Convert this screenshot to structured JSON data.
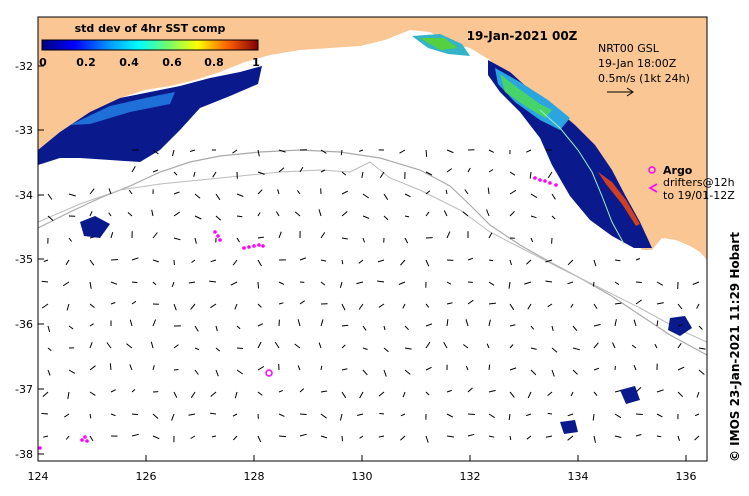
{
  "title": "19-Jan-2021 00Z",
  "colorbar": {
    "label": "std dev of 4hr SST comp",
    "ticks": [
      "0",
      "0.2",
      "0.4",
      "0.6",
      "0.8",
      "1"
    ]
  },
  "info": {
    "line1": "NRT00 GSL",
    "line2": "19-Jan 18:00Z",
    "line3": "0.5m/s (1kt 24h)"
  },
  "argo": {
    "label": "Argo",
    "line2": "drifters@12h",
    "line3": "to 19/01-12Z"
  },
  "side_label": "© IMOS 23-Jan-2021 11:29 Hobart",
  "axes": {
    "x_ticks": [
      "124",
      "126",
      "128",
      "130",
      "132",
      "134",
      "136"
    ],
    "y_ticks": [
      "-32",
      "-33",
      "-34",
      "-35",
      "-36",
      "-37",
      "-38"
    ]
  },
  "colors": {
    "land": "#f9c694",
    "ocean": "#ffffff",
    "sst_low": "#0a1a8c",
    "argo": "#ff00ff",
    "bathymetry": "#aaaaaa"
  }
}
